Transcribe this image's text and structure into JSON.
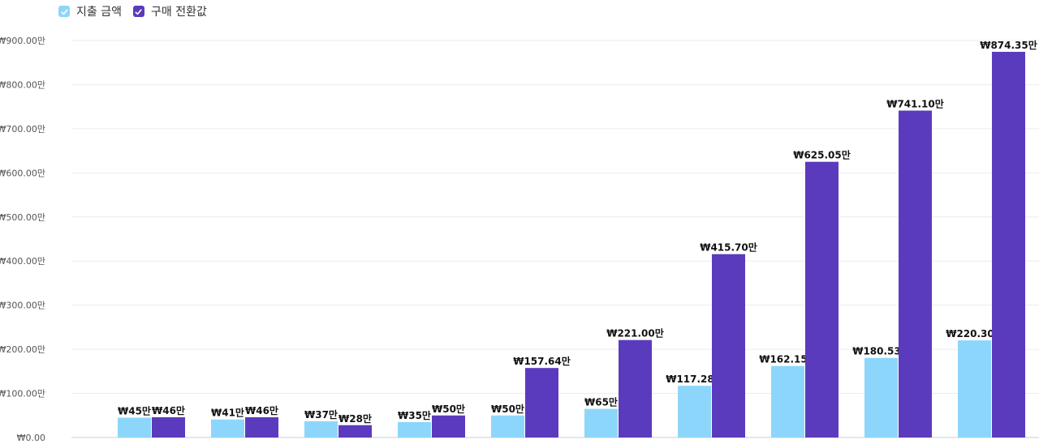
{
  "legend": [
    {
      "label": "지출 금액",
      "color": "#8dd6fb"
    },
    {
      "label": "구매 전환값",
      "color": "#5b3bbd"
    }
  ],
  "chart_data": {
    "type": "bar",
    "categories": [
      "",
      "",
      "",
      "",
      "",
      "",
      "",
      "",
      "",
      ""
    ],
    "series": [
      {
        "name": "지출 금액",
        "color": "#8dd6fb",
        "values": [
          45,
          41,
          37,
          35,
          50,
          65,
          117.28,
          162.15,
          180.53,
          220.3
        ],
        "labels": [
          "₩45만",
          "₩41만",
          "₩37만",
          "₩35만",
          "₩50만",
          "₩65만",
          "₩117.28만",
          "₩162.15만",
          "₩180.53만",
          "₩220.30만"
        ]
      },
      {
        "name": "구매 전환값",
        "color": "#5b3bbd",
        "values": [
          46,
          46,
          28,
          50,
          157.64,
          221.0,
          415.7,
          625.05,
          741.1,
          874.35
        ],
        "labels": [
          "₩46만",
          "₩46만",
          "₩28만",
          "₩50만",
          "₩157.64만",
          "₩221.00만",
          "₩415.70만",
          "₩625.05만",
          "₩741.10만",
          "₩874.35만"
        ]
      }
    ],
    "ylim": [
      0,
      900
    ],
    "yticks": [
      0,
      100,
      200,
      300,
      400,
      500,
      600,
      700,
      800,
      900
    ],
    "ytick_labels": [
      "₩0.00",
      "₩100.00만",
      "₩200.00만",
      "₩300.00만",
      "₩400.00만",
      "₩500.00만",
      "₩600.00만",
      "₩700.00만",
      "₩800.00만",
      "₩900.00만"
    ],
    "grid": true,
    "legend_position": "top-left"
  }
}
